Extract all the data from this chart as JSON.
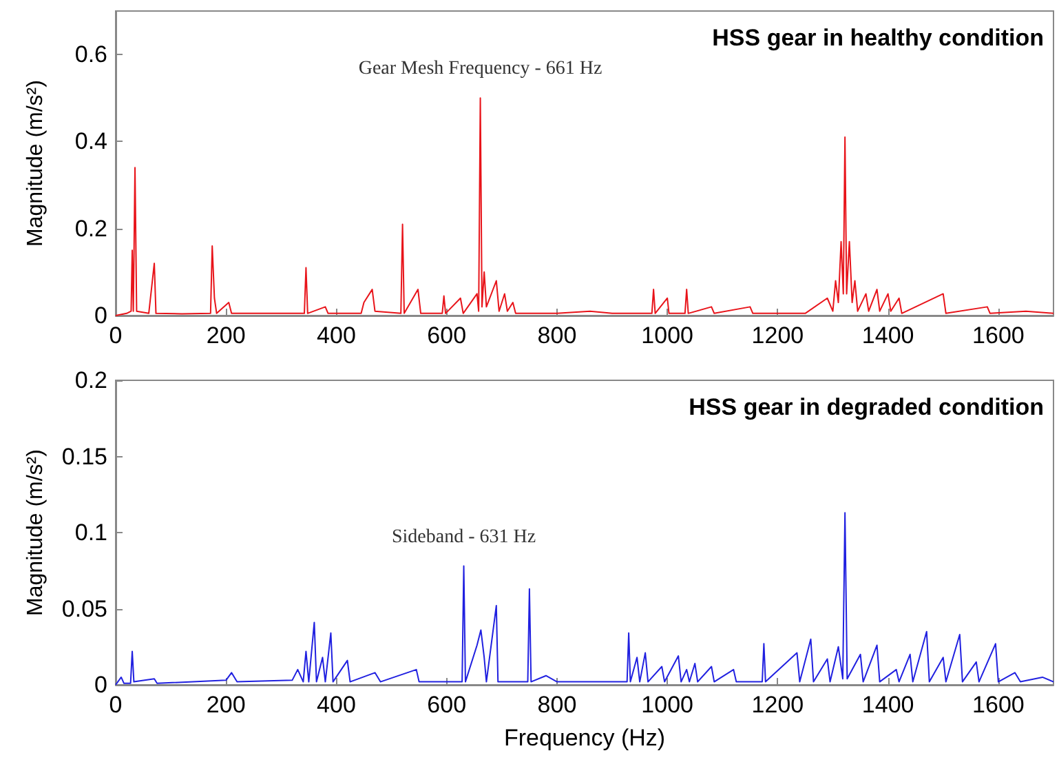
{
  "chart_data": [
    {
      "type": "line",
      "title": "HSS gear in healthy condition",
      "ylabel": "Magnitude (m/s²)",
      "xlim": [
        0,
        1700
      ],
      "xticks": [
        0,
        200,
        400,
        600,
        800,
        1000,
        1200,
        1400,
        1600
      ],
      "ylim": [
        0,
        0.7
      ],
      "yticks": [
        0,
        0.2,
        0.4,
        0.6
      ],
      "grid": false,
      "marker": "none",
      "annotations": [
        {
          "text": "Gear Mesh Frequency - 661 Hz",
          "x": 661,
          "y": 0.5
        }
      ],
      "series": [
        {
          "color": "#e8141a",
          "x": [
            0,
            20,
            28,
            30,
            32,
            35,
            38,
            60,
            70,
            73,
            120,
            172,
            175,
            179,
            183,
            205,
            210,
            300,
            342,
            345,
            348,
            380,
            385,
            445,
            450,
            465,
            470,
            517,
            520,
            523,
            548,
            553,
            592,
            595,
            598,
            625,
            630,
            655,
            658,
            661,
            664,
            668,
            672,
            690,
            695,
            705,
            710,
            720,
            725,
            800,
            860,
            900,
            972,
            975,
            978,
            1000,
            1003,
            1032,
            1035,
            1038,
            1080,
            1085,
            1150,
            1155,
            1250,
            1290,
            1300,
            1305,
            1310,
            1315,
            1319,
            1322,
            1325,
            1330,
            1335,
            1340,
            1345,
            1360,
            1365,
            1380,
            1385,
            1400,
            1405,
            1420,
            1425,
            1500,
            1505,
            1580,
            1585,
            1650,
            1700
          ],
          "values": [
            0,
            0.005,
            0.01,
            0.15,
            0.01,
            0.34,
            0.01,
            0.005,
            0.12,
            0.005,
            0.004,
            0.005,
            0.16,
            0.04,
            0.005,
            0.03,
            0.005,
            0.005,
            0.005,
            0.11,
            0.005,
            0.02,
            0.005,
            0.005,
            0.03,
            0.06,
            0.01,
            0.005,
            0.21,
            0.005,
            0.06,
            0.005,
            0.005,
            0.045,
            0.005,
            0.04,
            0.005,
            0.05,
            0.01,
            0.5,
            0.02,
            0.1,
            0.02,
            0.08,
            0.01,
            0.05,
            0.01,
            0.03,
            0.005,
            0.005,
            0.01,
            0.005,
            0.005,
            0.06,
            0.005,
            0.04,
            0.005,
            0.005,
            0.06,
            0.005,
            0.02,
            0.005,
            0.02,
            0.005,
            0.005,
            0.04,
            0.01,
            0.08,
            0.03,
            0.17,
            0.05,
            0.41,
            0.05,
            0.17,
            0.03,
            0.08,
            0.01,
            0.05,
            0.01,
            0.06,
            0.01,
            0.05,
            0.01,
            0.04,
            0.005,
            0.05,
            0.005,
            0.02,
            0.005,
            0.01,
            0.005
          ]
        }
      ]
    },
    {
      "type": "line",
      "title": "HSS gear in degraded condition",
      "xlabel": "Frequency (Hz)",
      "ylabel": "Magnitude (m/s²)",
      "xlim": [
        0,
        1700
      ],
      "xticks": [
        0,
        200,
        400,
        600,
        800,
        1000,
        1200,
        1400,
        1600
      ],
      "ylim": [
        0,
        0.2
      ],
      "yticks": [
        0,
        0.05,
        0.1,
        0.15,
        0.2
      ],
      "grid": false,
      "marker": "none",
      "annotations": [
        {
          "text": "Sideband - 631 Hz",
          "x": 631,
          "y": 0.078
        }
      ],
      "series": [
        {
          "color": "#2020e0",
          "x": [
            0,
            10,
            15,
            27,
            30,
            33,
            70,
            75,
            200,
            210,
            220,
            320,
            330,
            340,
            345,
            350,
            360,
            364,
            375,
            380,
            390,
            394,
            420,
            425,
            470,
            480,
            545,
            550,
            628,
            631,
            634,
            655,
            662,
            668,
            672,
            690,
            693,
            747,
            750,
            753,
            780,
            800,
            927,
            930,
            933,
            945,
            950,
            960,
            965,
            990,
            995,
            1020,
            1025,
            1035,
            1040,
            1050,
            1055,
            1080,
            1085,
            1120,
            1125,
            1172,
            1175,
            1178,
            1235,
            1240,
            1260,
            1265,
            1290,
            1295,
            1310,
            1318,
            1322,
            1326,
            1350,
            1355,
            1380,
            1385,
            1415,
            1420,
            1440,
            1445,
            1470,
            1475,
            1500,
            1505,
            1530,
            1535,
            1560,
            1565,
            1595,
            1600,
            1630,
            1640,
            1680,
            1700
          ],
          "values": [
            0,
            0.005,
            0.001,
            0.001,
            0.022,
            0.002,
            0.004,
            0.001,
            0.003,
            0.008,
            0.002,
            0.003,
            0.01,
            0.002,
            0.022,
            0.002,
            0.041,
            0.002,
            0.018,
            0.002,
            0.034,
            0.002,
            0.016,
            0.002,
            0.008,
            0.002,
            0.01,
            0.002,
            0.002,
            0.078,
            0.002,
            0.026,
            0.036,
            0.018,
            0.002,
            0.052,
            0.002,
            0.002,
            0.063,
            0.002,
            0.006,
            0.002,
            0.002,
            0.034,
            0.002,
            0.018,
            0.002,
            0.021,
            0.002,
            0.012,
            0.002,
            0.019,
            0.002,
            0.01,
            0.002,
            0.014,
            0.002,
            0.012,
            0.002,
            0.01,
            0.002,
            0.002,
            0.027,
            0.002,
            0.021,
            0.002,
            0.03,
            0.002,
            0.017,
            0.002,
            0.025,
            0.004,
            0.113,
            0.004,
            0.02,
            0.002,
            0.026,
            0.002,
            0.01,
            0.002,
            0.02,
            0.002,
            0.035,
            0.002,
            0.018,
            0.002,
            0.033,
            0.002,
            0.015,
            0.002,
            0.027,
            0.002,
            0.008,
            0.002,
            0.005,
            0.002
          ]
        }
      ]
    }
  ]
}
